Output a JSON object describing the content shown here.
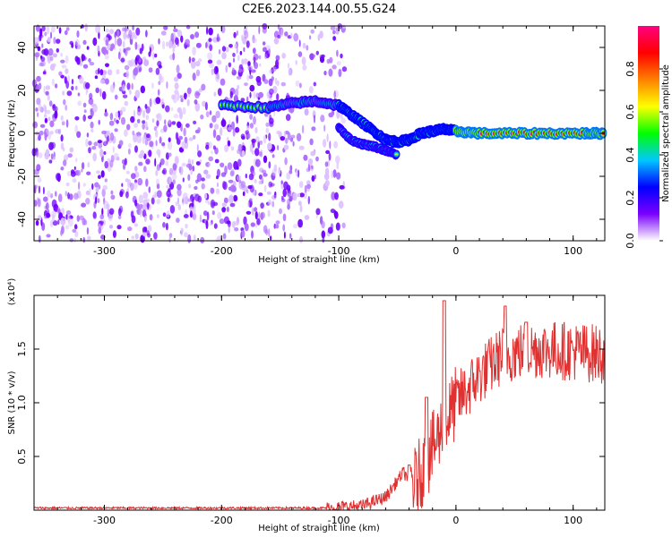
{
  "title": "C2E6.2023.144.00.55.G24",
  "chart_data": [
    {
      "type": "heatmap",
      "xlabel": "Height of straight line (km)",
      "ylabel": "Frequency (Hz)",
      "xlim": [
        -360,
        127
      ],
      "ylim": [
        -50,
        50
      ],
      "xticks": [
        -300,
        -200,
        -100,
        0,
        100
      ],
      "yticks": [
        -40,
        -20,
        0,
        20,
        40
      ],
      "colorbar": {
        "label": "Normalized spectral amplitude",
        "range": [
          0,
          1
        ],
        "ticks": [
          "0.0",
          "0.2",
          "0.4",
          "0.6",
          "0.8"
        ],
        "tick_values": [
          0,
          0.2,
          0.4,
          0.6,
          0.8
        ],
        "colors": [
          "#ffffff",
          "#7a00ff",
          "#0000ff",
          "#00c8ff",
          "#00ff00",
          "#ffff00",
          "#ff8000",
          "#ff0000",
          "#ff0080"
        ]
      },
      "noise_region": {
        "x_range": [
          -360,
          -95
        ],
        "y_range": [
          -50,
          50
        ],
        "amplitude": 0.15
      },
      "signal_track": [
        {
          "x": -200,
          "y": 13
        },
        {
          "x": -160,
          "y": 12
        },
        {
          "x": -140,
          "y": 14
        },
        {
          "x": -120,
          "y": 15
        },
        {
          "x": -100,
          "y": 13
        },
        {
          "x": -90,
          "y": 9
        },
        {
          "x": -80,
          "y": 5
        },
        {
          "x": -70,
          "y": 1
        },
        {
          "x": -60,
          "y": -3
        },
        {
          "x": -50,
          "y": -4
        },
        {
          "x": -40,
          "y": -3
        },
        {
          "x": -30,
          "y": 0
        },
        {
          "x": -20,
          "y": 1
        },
        {
          "x": -10,
          "y": 2
        },
        {
          "x": 0,
          "y": 1
        },
        {
          "x": 20,
          "y": 0
        },
        {
          "x": 50,
          "y": 0
        },
        {
          "x": 80,
          "y": 0
        },
        {
          "x": 110,
          "y": 0
        },
        {
          "x": 127,
          "y": 0
        }
      ],
      "secondary_track": [
        {
          "x": -100,
          "y": 3
        },
        {
          "x": -90,
          "y": -3
        },
        {
          "x": -80,
          "y": -5
        },
        {
          "x": -70,
          "y": -6
        },
        {
          "x": -60,
          "y": -8
        },
        {
          "x": -50,
          "y": -10
        }
      ]
    },
    {
      "type": "line",
      "xlabel": "Height of straight line (km)",
      "ylabel": "SNR (10 * v/v)",
      "multiplier": "(x10⁴)",
      "xlim": [
        -360,
        127
      ],
      "ylim": [
        0,
        2
      ],
      "xticks": [
        -300,
        -200,
        -100,
        0,
        100
      ],
      "yticks": [
        0.5,
        1.0,
        1.5
      ],
      "series": [
        {
          "color": "#e03030",
          "profile": [
            {
              "x": -360,
              "y": 0.02
            },
            {
              "x": -110,
              "y": 0.02
            },
            {
              "x": -80,
              "y": 0.04
            },
            {
              "x": -60,
              "y": 0.12
            },
            {
              "x": -45,
              "y": 0.35
            },
            {
              "x": -35,
              "y": 0.25
            },
            {
              "x": -25,
              "y": 0.45
            },
            {
              "x": -10,
              "y": 0.8
            },
            {
              "x": 0,
              "y": 1.0
            },
            {
              "x": 20,
              "y": 1.25
            },
            {
              "x": 40,
              "y": 1.45
            },
            {
              "x": 70,
              "y": 1.5
            },
            {
              "x": 100,
              "y": 1.48
            },
            {
              "x": 127,
              "y": 1.45
            }
          ],
          "peaks": [
            {
              "x": -40,
              "y": 0.42
            },
            {
              "x": -25,
              "y": 1.05
            },
            {
              "x": -10,
              "y": 1.95
            },
            {
              "x": 42,
              "y": 1.9
            },
            {
              "x": 60,
              "y": 1.75
            }
          ]
        }
      ]
    }
  ]
}
